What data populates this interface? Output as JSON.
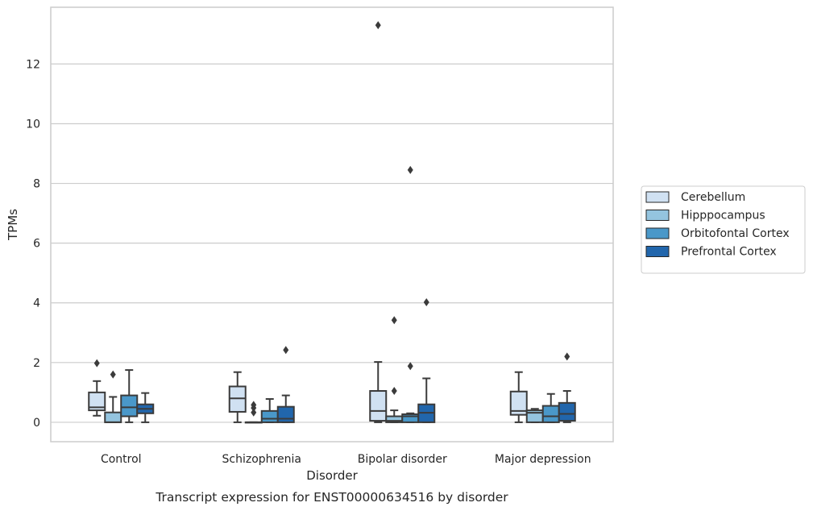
{
  "chart_data": {
    "type": "box",
    "title": "",
    "caption": "Transcript expression for ENST00000634516 by disorder",
    "xlabel": "Disorder",
    "ylabel": "TPMs",
    "ylim": [
      -0.65,
      13.9
    ],
    "yticks": [
      0,
      2,
      4,
      6,
      8,
      10,
      12
    ],
    "grid": "horizontal",
    "legend_position": "right",
    "categories": [
      "Control",
      "Schizophrenia",
      "Bipolar disorder",
      "Major depression"
    ],
    "series": [
      {
        "name": "Cerebellum",
        "color": "#d0e1f2",
        "boxes": [
          {
            "whisker_low": 0.22,
            "q1": 0.4,
            "median": 0.5,
            "q3": 1.0,
            "whisker_high": 1.38,
            "outliers": [
              1.98
            ]
          },
          {
            "whisker_low": 0.0,
            "q1": 0.35,
            "median": 0.8,
            "q3": 1.2,
            "whisker_high": 1.68,
            "outliers": []
          },
          {
            "whisker_low": 0.0,
            "q1": 0.05,
            "median": 0.38,
            "q3": 1.05,
            "whisker_high": 2.02,
            "outliers": [
              13.3
            ]
          },
          {
            "whisker_low": 0.0,
            "q1": 0.25,
            "median": 0.38,
            "q3": 1.03,
            "whisker_high": 1.68,
            "outliers": []
          }
        ]
      },
      {
        "name": "Hipppocampus",
        "color": "#94c4df",
        "boxes": [
          {
            "whisker_low": 0.0,
            "q1": 0.0,
            "median": 0.0,
            "q3": 0.33,
            "whisker_high": 0.85,
            "outliers": [
              1.6
            ]
          },
          {
            "whisker_low": 0.0,
            "q1": 0.0,
            "median": 0.0,
            "q3": 0.0,
            "whisker_high": 0.0,
            "outliers": [
              0.33,
              0.48,
              0.58
            ]
          },
          {
            "whisker_low": 0.0,
            "q1": 0.0,
            "median": 0.05,
            "q3": 0.2,
            "whisker_high": 0.4,
            "outliers": [
              1.05,
              3.42
            ]
          },
          {
            "whisker_low": 0.0,
            "q1": 0.0,
            "median": 0.32,
            "q3": 0.4,
            "whisker_high": 0.45,
            "outliers": []
          }
        ]
      },
      {
        "name": "Orbitofontal Cortex",
        "color": "#4a98c9",
        "boxes": [
          {
            "whisker_low": 0.0,
            "q1": 0.2,
            "median": 0.5,
            "q3": 0.9,
            "whisker_high": 1.75,
            "outliers": []
          },
          {
            "whisker_low": 0.0,
            "q1": 0.0,
            "median": 0.12,
            "q3": 0.38,
            "whisker_high": 0.78,
            "outliers": []
          },
          {
            "whisker_low": 0.0,
            "q1": 0.0,
            "median": 0.2,
            "q3": 0.27,
            "whisker_high": 0.3,
            "outliers": [
              1.88,
              8.45
            ]
          },
          {
            "whisker_low": 0.0,
            "q1": 0.0,
            "median": 0.2,
            "q3": 0.55,
            "whisker_high": 0.95,
            "outliers": []
          }
        ]
      },
      {
        "name": "Prefrontal Cortex",
        "color": "#2166ac",
        "boxes": [
          {
            "whisker_low": 0.0,
            "q1": 0.3,
            "median": 0.45,
            "q3": 0.6,
            "whisker_high": 0.98,
            "outliers": []
          },
          {
            "whisker_low": 0.0,
            "q1": 0.0,
            "median": 0.12,
            "q3": 0.52,
            "whisker_high": 0.9,
            "outliers": [
              2.42
            ]
          },
          {
            "whisker_low": 0.0,
            "q1": 0.0,
            "median": 0.32,
            "q3": 0.6,
            "whisker_high": 1.47,
            "outliers": [
              4.02
            ]
          },
          {
            "whisker_low": 0.0,
            "q1": 0.05,
            "median": 0.28,
            "q3": 0.65,
            "whisker_high": 1.05,
            "outliers": [
              2.2
            ]
          }
        ]
      }
    ]
  }
}
